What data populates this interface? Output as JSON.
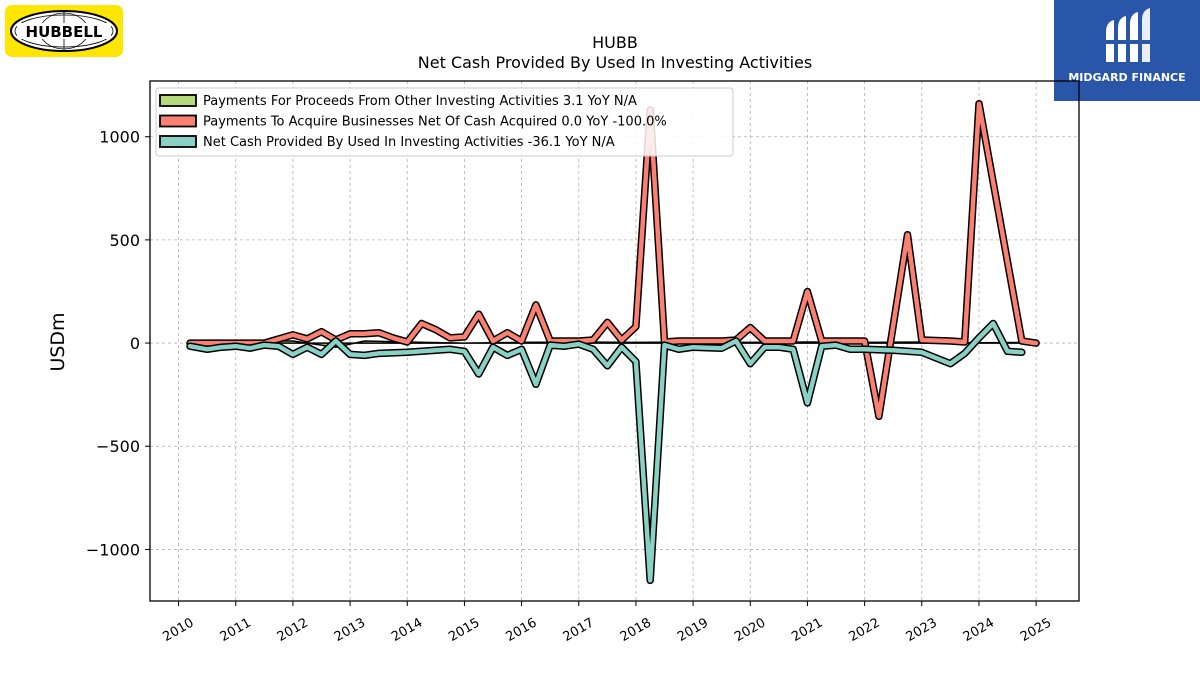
{
  "branding": {
    "left_logo_text": "HUBBELL",
    "right_logo_text": "MIDGARD FINANCE",
    "left_logo_bg": "#ffe600",
    "right_logo_bg": "#2956a8"
  },
  "chart_data": {
    "type": "line",
    "title": "HUBB",
    "subtitle": "Net Cash Provided By Used In Investing Activities",
    "xlabel": "",
    "ylabel": "USDm",
    "xlim": [
      2009.5,
      2025.75
    ],
    "ylim": [
      -1250,
      1270
    ],
    "grid": true,
    "legend_position": "top-left",
    "x_ticks": [
      2010,
      2011,
      2012,
      2013,
      2014,
      2015,
      2016,
      2017,
      2018,
      2019,
      2020,
      2021,
      2022,
      2023,
      2024,
      2025
    ],
    "y_ticks": [
      {
        "value": 1000,
        "label": "1000"
      },
      {
        "value": 500,
        "label": "500"
      },
      {
        "value": 0,
        "label": "0"
      },
      {
        "value": -500,
        "label": "−500"
      },
      {
        "value": -1000,
        "label": "−1000"
      }
    ],
    "series": [
      {
        "name": "Payments For Proceeds From Other Investing Activities  3.1 YoY N/A",
        "color": "#b5db7a",
        "style": "area",
        "points": [
          [
            2010.2,
            8
          ],
          [
            2011.0,
            10
          ],
          [
            2012.0,
            10
          ],
          [
            2012.75,
            -20
          ],
          [
            2013.25,
            10
          ],
          [
            2014.0,
            5
          ],
          [
            2015.0,
            0
          ],
          [
            2016.0,
            3
          ],
          [
            2017.0,
            5
          ],
          [
            2018.0,
            3
          ],
          [
            2019.0,
            5
          ],
          [
            2020.0,
            3
          ],
          [
            2021.0,
            5
          ],
          [
            2022.0,
            3
          ],
          [
            2023.0,
            5
          ],
          [
            2024.0,
            2
          ],
          [
            2025.0,
            3.1
          ]
        ]
      },
      {
        "name": "Payments To Acquire Businesses Net Of Cash Acquired  0.0 YoY -100.0%",
        "color": "#fa8072",
        "style": "line",
        "points": [
          [
            2010.2,
            0
          ],
          [
            2010.5,
            0
          ],
          [
            2011.0,
            0
          ],
          [
            2011.5,
            0
          ],
          [
            2012.0,
            40
          ],
          [
            2012.25,
            20
          ],
          [
            2012.5,
            55
          ],
          [
            2012.75,
            15
          ],
          [
            2013.0,
            45
          ],
          [
            2013.25,
            45
          ],
          [
            2013.5,
            50
          ],
          [
            2013.75,
            25
          ],
          [
            2014.0,
            5
          ],
          [
            2014.25,
            95
          ],
          [
            2014.5,
            65
          ],
          [
            2014.75,
            25
          ],
          [
            2015.0,
            30
          ],
          [
            2015.25,
            140
          ],
          [
            2015.5,
            10
          ],
          [
            2015.75,
            50
          ],
          [
            2016.0,
            10
          ],
          [
            2016.25,
            185
          ],
          [
            2016.5,
            10
          ],
          [
            2016.75,
            10
          ],
          [
            2017.0,
            10
          ],
          [
            2017.25,
            15
          ],
          [
            2017.5,
            100
          ],
          [
            2017.75,
            15
          ],
          [
            2018.0,
            80
          ],
          [
            2018.25,
            1130
          ],
          [
            2018.5,
            5
          ],
          [
            2018.75,
            10
          ],
          [
            2019.0,
            10
          ],
          [
            2019.5,
            10
          ],
          [
            2019.75,
            15
          ],
          [
            2020.0,
            75
          ],
          [
            2020.25,
            10
          ],
          [
            2020.75,
            10
          ],
          [
            2021.0,
            250
          ],
          [
            2021.25,
            10
          ],
          [
            2022.0,
            10
          ],
          [
            2022.25,
            -355
          ],
          [
            2022.75,
            525
          ],
          [
            2023.0,
            15
          ],
          [
            2023.5,
            10
          ],
          [
            2023.75,
            5
          ],
          [
            2024.0,
            1160
          ],
          [
            2024.75,
            10
          ],
          [
            2025.0,
            0
          ]
        ]
      },
      {
        "name": "Net Cash Provided By Used In Investing Activities  -36.1 YoY N/A",
        "color": "#88d1c4",
        "style": "line",
        "points": [
          [
            2010.2,
            -15
          ],
          [
            2010.5,
            -30
          ],
          [
            2010.75,
            -20
          ],
          [
            2011.0,
            -15
          ],
          [
            2011.25,
            -25
          ],
          [
            2011.5,
            -10
          ],
          [
            2011.75,
            -15
          ],
          [
            2012.0,
            -55
          ],
          [
            2012.25,
            -20
          ],
          [
            2012.5,
            -55
          ],
          [
            2012.75,
            10
          ],
          [
            2013.0,
            -55
          ],
          [
            2013.25,
            -60
          ],
          [
            2013.5,
            -50
          ],
          [
            2014.0,
            -45
          ],
          [
            2014.5,
            -35
          ],
          [
            2014.75,
            -30
          ],
          [
            2015.0,
            -40
          ],
          [
            2015.25,
            -150
          ],
          [
            2015.5,
            -20
          ],
          [
            2015.75,
            -60
          ],
          [
            2016.0,
            -30
          ],
          [
            2016.25,
            -200
          ],
          [
            2016.5,
            -10
          ],
          [
            2016.75,
            -15
          ],
          [
            2017.0,
            -5
          ],
          [
            2017.25,
            -30
          ],
          [
            2017.5,
            -110
          ],
          [
            2017.75,
            -20
          ],
          [
            2018.0,
            -90
          ],
          [
            2018.25,
            -1150
          ],
          [
            2018.5,
            -10
          ],
          [
            2018.75,
            -30
          ],
          [
            2019.0,
            -20
          ],
          [
            2019.5,
            -25
          ],
          [
            2019.75,
            10
          ],
          [
            2020.0,
            -100
          ],
          [
            2020.25,
            -20
          ],
          [
            2020.5,
            -20
          ],
          [
            2020.75,
            -30
          ],
          [
            2021.0,
            -290
          ],
          [
            2021.25,
            -15
          ],
          [
            2021.5,
            -10
          ],
          [
            2021.75,
            -30
          ],
          [
            2022.0,
            -30
          ],
          [
            2022.5,
            -35
          ],
          [
            2023.0,
            -45
          ],
          [
            2023.5,
            -100
          ],
          [
            2023.75,
            -50
          ],
          [
            2024.0,
            25
          ],
          [
            2024.25,
            95
          ],
          [
            2024.5,
            -40
          ],
          [
            2024.75,
            -45
          ]
        ]
      }
    ]
  }
}
